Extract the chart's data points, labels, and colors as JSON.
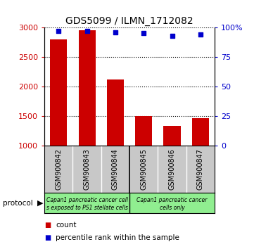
{
  "title": "GDS5099 / ILMN_1712082",
  "samples": [
    "GSM900842",
    "GSM900843",
    "GSM900844",
    "GSM900845",
    "GSM900846",
    "GSM900847"
  ],
  "counts": [
    2800,
    2950,
    2120,
    1500,
    1340,
    1470
  ],
  "percentiles": [
    97,
    97,
    96,
    95,
    93,
    94
  ],
  "ylim_left": [
    1000,
    3000
  ],
  "ylim_right": [
    0,
    100
  ],
  "yticks_left": [
    1000,
    1500,
    2000,
    2500,
    3000
  ],
  "yticks_right": [
    0,
    25,
    50,
    75,
    100
  ],
  "bar_color": "#cc0000",
  "dot_color": "#0000cc",
  "grid_color": "#000000",
  "group1_label_line1": "Capan1 pancreatic cancer cell",
  "group1_label_line2": "s exposed to PS1 stellate cells",
  "group2_label_line1": "Capan1 pancreatic cancer",
  "group2_label_line2": "cells only",
  "legend_count_label": "count",
  "legend_percentile_label": "percentile rank within the sample",
  "protocol_label": "protocol",
  "background_color": "#ffffff",
  "sample_box_color": "#c8c8c8",
  "protocol_box_color": "#90ee90"
}
